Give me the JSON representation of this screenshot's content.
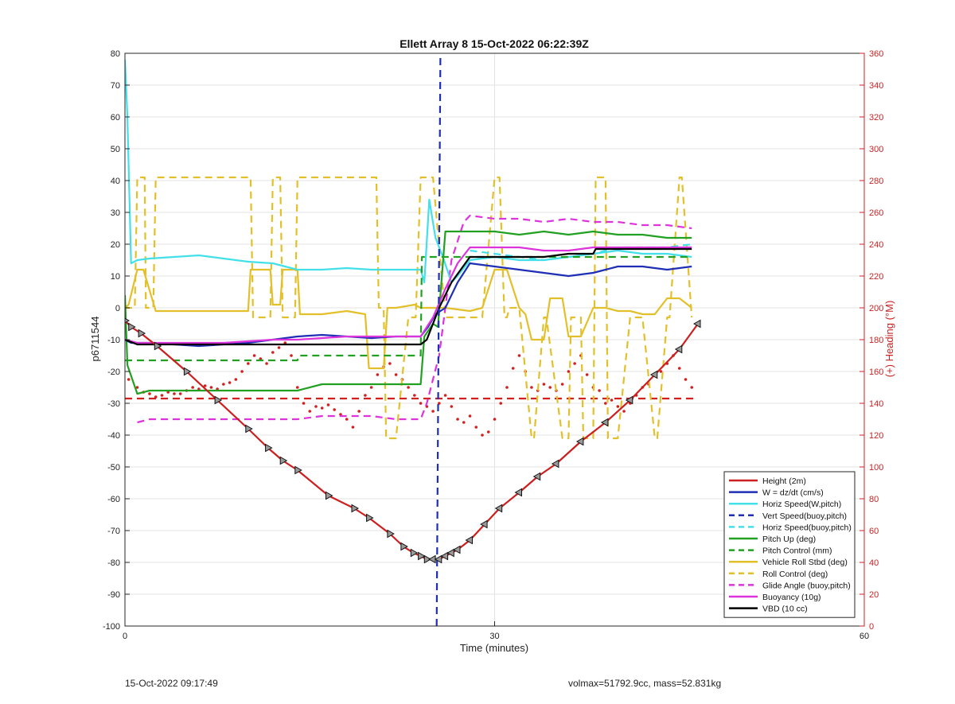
{
  "chart_data": {
    "type": "line",
    "title": "Ellett Array 8 15-Oct-2022 06:22:39Z",
    "xlabel": "Time (minutes)",
    "ylabel": "p6711544",
    "y2label": "(+) Heading (°M)",
    "xlim": [
      0,
      60
    ],
    "ylim": [
      -100,
      80
    ],
    "y2lim": [
      0,
      360
    ],
    "xticks": [
      "0",
      "30",
      "60"
    ],
    "yticks": [
      "-100",
      "-90",
      "-80",
      "-70",
      "-60",
      "-50",
      "-40",
      "-30",
      "-20",
      "-10",
      "0",
      "10",
      "20",
      "30",
      "40",
      "50",
      "60",
      "70",
      "80"
    ],
    "y2ticks": [
      "0",
      "20",
      "40",
      "60",
      "80",
      "100",
      "120",
      "140",
      "160",
      "180",
      "200",
      "220",
      "240",
      "260",
      "280",
      "300",
      "320",
      "340",
      "360"
    ],
    "grid": true,
    "legend_position": "bottom-right",
    "colors": {
      "height": "#cc1f1f",
      "w": "#1f2fb5",
      "horiz_w": "#44e0ea",
      "vert_buoy": "#1f2fb5",
      "horiz_buoy": "#44e0ea",
      "pitch_up": "#22a022",
      "pitch_control": "#22a022",
      "roll": "#e3c02a",
      "roll_control": "#e3c02a",
      "glide": "#dd33dd",
      "buoyancy": "#dd33dd",
      "vbd": "#000000",
      "heading": "#d41f1f",
      "axis_right": "#cc2222"
    },
    "series": [
      {
        "key": "height",
        "name": "Height (2m)",
        "style": "solid",
        "color_key": "height",
        "markers": true,
        "x": [
          0,
          0.5,
          1.3,
          2.6,
          5,
          7.5,
          10,
          11.6,
          12.8,
          14,
          16.5,
          18.6,
          19.8,
          21.5,
          22.6,
          23.4,
          24,
          24.5,
          25,
          25.5,
          26,
          26.5,
          27,
          28,
          29.2,
          30.4,
          32,
          33.5,
          35,
          37,
          39,
          41,
          43,
          45,
          46.5
        ],
        "y": [
          -4,
          -6,
          -8,
          -12,
          -20,
          -29,
          -38,
          -44,
          -48,
          -51,
          -59,
          -63,
          -66,
          -71,
          -75,
          -77,
          -78,
          -79,
          -79,
          -79,
          -78,
          -77,
          -76,
          -73,
          -68,
          -63,
          -58,
          -53,
          -49,
          -42,
          -36,
          -29,
          -21,
          -13,
          -5
        ]
      },
      {
        "key": "w",
        "name": "W = dz/dt (cm/s)",
        "style": "solid",
        "color_key": "w",
        "x": [
          0,
          0.5,
          2,
          4,
          6,
          8,
          10,
          12,
          14,
          16,
          18,
          20,
          22,
          24,
          24.6,
          25.2,
          26,
          27,
          28,
          30,
          32,
          34,
          36,
          38,
          40,
          42,
          44,
          46
        ],
        "y": [
          -10,
          -11,
          -11,
          -11.5,
          -12,
          -11.5,
          -11,
          -10,
          -9,
          -8.5,
          -9,
          -9.5,
          -9,
          -9,
          -6,
          -2,
          0,
          8,
          14,
          13,
          12,
          11,
          10,
          11,
          13,
          13,
          12,
          13
        ]
      },
      {
        "key": "horiz_w",
        "name": "Horiz Speed(W,pitch)",
        "style": "solid",
        "color_key": "horiz_w",
        "x": [
          0,
          0.2,
          0.5,
          1,
          2,
          4,
          6,
          8,
          10,
          12,
          14,
          16,
          18,
          20,
          22,
          24,
          24.3,
          24.7,
          25.2,
          25.8,
          26.5,
          27,
          28,
          30,
          32,
          34,
          36,
          38,
          40,
          42,
          44,
          46
        ],
        "y": [
          78,
          60,
          14,
          15,
          15.5,
          16,
          16.5,
          15.5,
          14.5,
          14,
          12,
          12,
          12.5,
          12,
          12,
          12,
          8,
          34,
          22,
          16,
          8,
          10,
          15,
          16,
          15,
          15,
          16,
          17,
          18,
          17,
          17,
          16
        ]
      },
      {
        "key": "vert_buoy",
        "name": "Vert Speed(buoy,pitch)",
        "style": "dashed",
        "color_key": "vert_buoy",
        "x": [
          25.3,
          25.6
        ],
        "y": [
          -100,
          80
        ]
      },
      {
        "key": "horiz_buoy",
        "name": "Horiz Speed(buoy,pitch)",
        "style": "dashed",
        "color_key": "horiz_buoy",
        "x": [
          28,
          30,
          32,
          34,
          36,
          38,
          40,
          42,
          44,
          46
        ],
        "y": [
          18,
          17,
          16,
          15,
          16,
          17,
          19,
          19,
          19,
          20
        ]
      },
      {
        "key": "pitch_up",
        "name": "Pitch Up (deg)",
        "style": "solid",
        "color_key": "pitch_up",
        "x": [
          0,
          0.2,
          1,
          2,
          4,
          6,
          8,
          10,
          12,
          14,
          16,
          18,
          20,
          22,
          24,
          24.3,
          25,
          25.4,
          26,
          26.4,
          28,
          30,
          32,
          34,
          36,
          38,
          40,
          42,
          44,
          46
        ],
        "y": [
          4,
          -18,
          -27,
          -26,
          -26,
          -26,
          -26,
          -26,
          -26,
          -26,
          -24,
          -24,
          -24,
          -24,
          -24,
          -9,
          -5,
          -6,
          24,
          24,
          24,
          24,
          23,
          24,
          23,
          24,
          23,
          23,
          22,
          22
        ]
      },
      {
        "key": "pitch_control",
        "name": "Pitch Control (mm)",
        "style": "dashed",
        "color_key": "pitch_control",
        "x": [
          0,
          14,
          14.1,
          24,
          24.1,
          28,
          46
        ],
        "y": [
          -16.5,
          -16.5,
          -15,
          -15,
          16,
          16,
          16
        ]
      },
      {
        "key": "roll",
        "name": "Vehicle Roll Stbd (deg)",
        "style": "solid",
        "color_key": "roll",
        "x": [
          0,
          0.3,
          1,
          1.5,
          2.5,
          3,
          6,
          10,
          10.2,
          11.8,
          12,
          12.6,
          12.8,
          14,
          14.2,
          16,
          18,
          19.5,
          19.8,
          21,
          21.3,
          22,
          23.5,
          24,
          25,
          26,
          28,
          29,
          30,
          31,
          32,
          32.5,
          33,
          34,
          34.5,
          35.5,
          36,
          37,
          38,
          39,
          40,
          41,
          42,
          43,
          44,
          45,
          46
        ],
        "y": [
          0,
          1,
          12,
          12,
          -1,
          -1,
          -1,
          -1,
          12,
          12,
          1,
          1,
          12,
          12,
          -2,
          -2,
          -1,
          -2,
          -19,
          -19,
          0,
          0,
          1,
          0,
          0,
          0,
          -1,
          0,
          12,
          12,
          0,
          -2,
          -10,
          -10,
          3,
          3,
          -9,
          -9,
          0,
          0,
          -1,
          -1,
          -2,
          -2,
          3,
          3,
          0
        ]
      },
      {
        "key": "roll_control",
        "name": "Roll Control (deg)",
        "style": "dashed",
        "color_key": "roll_control",
        "x": [
          0,
          0.8,
          1,
          1.6,
          1.7,
          2.3,
          2.5,
          10.2,
          10.4,
          11.8,
          12,
          12.6,
          12.8,
          13.8,
          14,
          20.4,
          20.6,
          21,
          21.2,
          22,
          23,
          23.6,
          24,
          25,
          26,
          27,
          28,
          29,
          30,
          30.4,
          30.8,
          31,
          31.2,
          32,
          33,
          33.2,
          34,
          34.2,
          35.5,
          36,
          36.2,
          37,
          37.2,
          38,
          38.2,
          39,
          39.2,
          40,
          41,
          42,
          43,
          43.2,
          44,
          44.2,
          45,
          45.2,
          46
        ],
        "y": [
          0,
          0,
          41,
          41,
          0,
          0,
          41,
          41,
          -3,
          -3,
          41,
          41,
          -3,
          -3,
          41,
          41,
          0,
          0,
          -41,
          -41,
          -3,
          -3,
          41,
          41,
          -3,
          -3,
          -3,
          -3,
          41,
          41,
          -3,
          -3,
          0,
          0,
          -41,
          -41,
          -3,
          -3,
          -41,
          -41,
          -3,
          -3,
          -41,
          -41,
          41,
          41,
          -41,
          -41,
          -3,
          -3,
          -41,
          -41,
          -3,
          -3,
          41,
          41,
          -3
        ]
      },
      {
        "key": "glide",
        "name": "Glide Angle (buoy,pitch)",
        "style": "dashed",
        "color_key": "glide",
        "x": [
          1,
          2,
          4,
          6,
          8,
          10,
          12,
          14,
          16,
          18,
          20,
          22,
          24,
          24.5,
          25.5,
          26.5,
          27.5,
          28,
          30,
          32,
          34,
          36,
          38,
          40,
          42,
          44,
          46
        ],
        "y": [
          -36,
          -35,
          -35,
          -35,
          -35,
          -35,
          -35,
          -35,
          -34,
          -34,
          -34,
          -35,
          -35,
          -30,
          -15,
          15,
          27,
          29,
          28,
          28,
          27,
          28,
          27,
          27,
          26,
          26,
          25
        ]
      },
      {
        "key": "buoyancy",
        "name": "Buoyancy (10g)",
        "style": "solid",
        "color_key": "buoyancy",
        "x": [
          0,
          1,
          2,
          4,
          6,
          8,
          10,
          12,
          14,
          16,
          18,
          20,
          22,
          24,
          25,
          26,
          27,
          28,
          30,
          32,
          34,
          36,
          38,
          40,
          42,
          44,
          46
        ],
        "y": [
          -10,
          -11,
          -11,
          -11,
          -11,
          -11,
          -10.5,
          -10,
          -10,
          -9.5,
          -9,
          -9,
          -9,
          -9,
          -3,
          6,
          14,
          19,
          19,
          19,
          18,
          18,
          19,
          19,
          19,
          19,
          19
        ]
      },
      {
        "key": "vbd",
        "name": "VBD (10 cc)",
        "style": "solid",
        "color_key": "vbd",
        "x": [
          0,
          1,
          2,
          4,
          6,
          8,
          10,
          12,
          14,
          16,
          18,
          20,
          22,
          24,
          24.5,
          25.5,
          26.5,
          28,
          30,
          32,
          34,
          36,
          38,
          38.2,
          40,
          42,
          44,
          46
        ],
        "y": [
          -10,
          -11.5,
          -11.5,
          -11.5,
          -11.5,
          -11.5,
          -11.5,
          -11.5,
          -11.5,
          -11.5,
          -11.5,
          -11.5,
          -11.5,
          -11.5,
          -10,
          0,
          8,
          16,
          16,
          16,
          16,
          17,
          17,
          18.5,
          18.5,
          18.5,
          18.5,
          18.5
        ]
      },
      {
        "key": "heading_target",
        "name": "",
        "style": "dashed",
        "color_key": "heading",
        "axis": "y2",
        "x": [
          0,
          46.5
        ],
        "y": [
          143,
          143
        ]
      },
      {
        "key": "heading",
        "name": "",
        "style": "dots",
        "color_key": "heading",
        "axis": "y2",
        "x": [
          0.3,
          1,
          1.5,
          2,
          2.5,
          3,
          3.5,
          4,
          4.5,
          5,
          5.5,
          6,
          6.5,
          7,
          7.5,
          8,
          8.5,
          9,
          9.5,
          10,
          10.5,
          11,
          11.5,
          12,
          12.5,
          13,
          13.5,
          14,
          14.5,
          15,
          15.5,
          16,
          16.5,
          17,
          17.5,
          18,
          18.5,
          19,
          19.5,
          20,
          20.5,
          21,
          21.5,
          22,
          22.5,
          23,
          23.5,
          24,
          24.5,
          25,
          25.5,
          26,
          26.5,
          27,
          27.5,
          28,
          28.5,
          29,
          29.5,
          30,
          30.5,
          31,
          31.5,
          32,
          32.5,
          33,
          33.5,
          34,
          34.5,
          35,
          35.5,
          36,
          36.5,
          37,
          37.5,
          38,
          38.5,
          39,
          39.5,
          40,
          40.5,
          41,
          41.5,
          42,
          42.5,
          43,
          43.5,
          44,
          44.5,
          45,
          45.5,
          46
        ],
        "y": [
          155,
          150,
          147,
          146,
          144,
          145,
          147,
          146,
          146,
          148,
          150,
          149,
          151,
          150,
          149,
          152,
          153,
          155,
          160,
          165,
          170,
          168,
          165,
          172,
          175,
          178,
          170,
          150,
          140,
          135,
          138,
          137,
          139,
          136,
          133,
          130,
          125,
          135,
          145,
          150,
          158,
          163,
          165,
          158,
          155,
          150,
          145,
          140,
          138,
          135,
          140,
          145,
          138,
          130,
          128,
          132,
          125,
          120,
          122,
          130,
          140,
          150,
          162,
          170,
          160,
          150,
          148,
          152,
          150,
          148,
          152,
          160,
          165,
          170,
          158,
          150,
          148,
          140,
          142,
          138,
          135,
          140,
          145,
          150,
          152,
          158,
          160,
          165,
          170,
          162,
          155,
          150
        ]
      }
    ]
  },
  "footer": {
    "timestamp": "15-Oct-2022 09:17:49",
    "summary": "volmax=51792.9cc, mass=52.831kg"
  }
}
